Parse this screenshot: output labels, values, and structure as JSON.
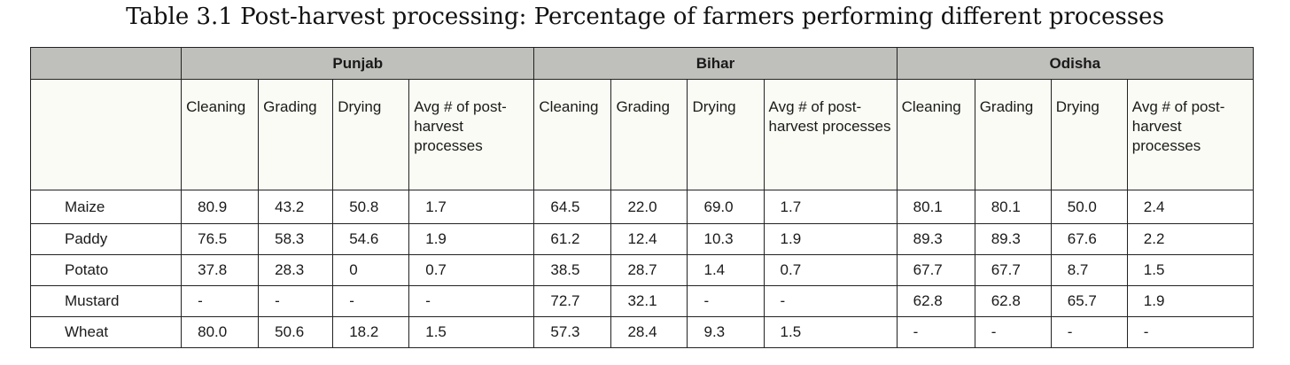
{
  "title": "Table 3.1 Post-harvest processing: Percentage of farmers performing different processes",
  "regions": [
    "Punjab",
    "Bihar",
    "Odisha"
  ],
  "subheaders": [
    "Cleaning",
    "Grading",
    "Drying",
    "Avg # of post-harvest processes"
  ],
  "rows": [
    {
      "crop": "Maize",
      "values": [
        "80.9",
        "43.2",
        "50.8",
        "1.7",
        "64.5",
        "22.0",
        "69.0",
        "1.7",
        "80.1",
        "80.1",
        "50.0",
        "2.4"
      ]
    },
    {
      "crop": "Paddy",
      "values": [
        "76.5",
        "58.3",
        "54.6",
        "1.9",
        "61.2",
        "12.4",
        "10.3",
        "1.9",
        "89.3",
        "89.3",
        "67.6",
        "2.2"
      ]
    },
    {
      "crop": "Potato",
      "values": [
        "37.8",
        "28.3",
        "0",
        "0.7",
        "38.5",
        "28.7",
        "1.4",
        "0.7",
        "67.7",
        "67.7",
        "8.7",
        "1.5"
      ]
    },
    {
      "crop": "Mustard",
      "values": [
        "-",
        "-",
        "-",
        "-",
        "72.7",
        "32.1",
        "-",
        "-",
        "62.8",
        "62.8",
        "65.7",
        "1.9"
      ]
    },
    {
      "crop": "Wheat",
      "values": [
        "80.0",
        "50.6",
        "18.2",
        "1.5",
        "57.3",
        "28.4",
        "9.3",
        "1.5",
        "-",
        "-",
        "-",
        "-"
      ]
    }
  ]
}
